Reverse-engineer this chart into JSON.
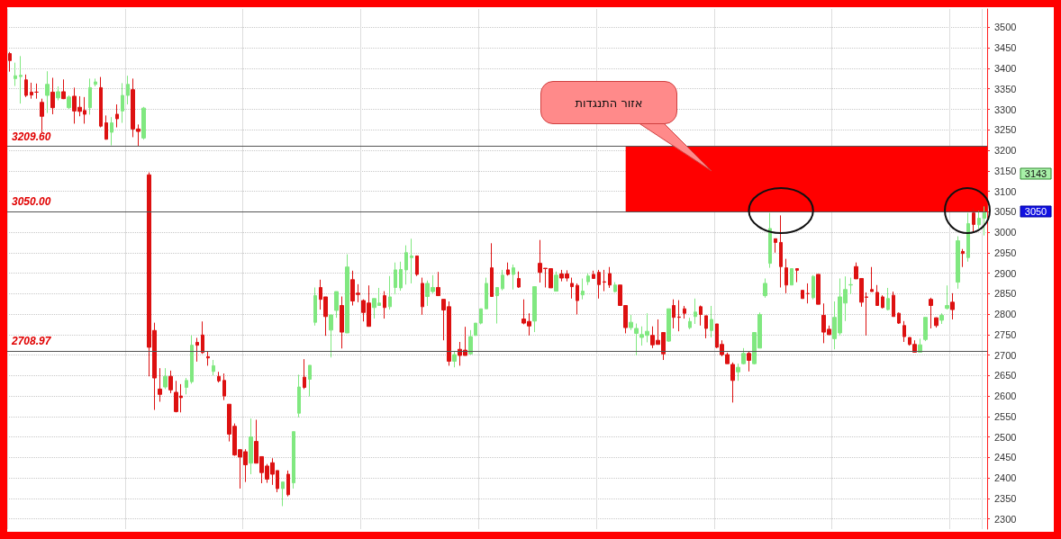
{
  "chart_data": {
    "type": "candlestick",
    "categories": [
      null,
      null,
      null,
      null,
      null,
      null,
      null,
      null,
      null,
      null,
      null,
      null,
      null,
      null,
      null,
      null,
      null,
      null,
      null,
      null,
      null,
      null,
      null,
      null,
      null,
      null,
      null,
      null,
      null,
      null,
      null,
      null,
      null,
      null,
      null,
      null,
      null,
      null,
      null,
      null,
      null,
      null,
      null,
      null,
      null,
      null,
      null,
      null,
      null,
      null,
      null,
      null,
      null,
      null,
      null,
      null,
      null,
      null,
      null,
      null,
      null,
      null,
      null,
      null,
      null,
      null,
      null,
      null,
      null,
      null,
      null,
      null,
      null,
      null,
      null,
      null,
      null,
      null,
      null,
      null,
      null,
      null,
      null,
      null,
      null,
      null,
      null,
      null,
      null,
      null,
      null,
      null,
      null,
      null,
      null,
      null,
      null,
      null,
      null,
      null,
      null,
      null,
      null,
      null,
      null,
      null,
      null,
      null,
      null,
      null,
      null,
      null,
      null,
      null,
      null,
      null,
      null,
      null,
      null,
      null,
      null,
      null,
      null,
      null,
      null,
      null,
      null,
      null,
      null,
      null,
      null,
      null,
      null,
      null,
      null,
      null,
      null,
      null,
      null,
      null,
      null,
      null,
      null,
      null,
      null,
      null,
      null,
      null,
      null,
      null,
      null,
      null,
      null,
      null,
      null,
      null,
      null,
      null,
      null,
      null,
      null,
      null,
      null,
      null,
      null,
      null,
      null,
      null,
      null,
      null,
      null,
      null,
      null,
      null,
      null,
      null,
      null,
      null,
      null,
      null,
      null,
      null,
      null
    ],
    "ohlc": [
      [
        3436,
        3440,
        3392,
        3419
      ],
      [
        3375,
        3414,
        3357,
        3382
      ],
      [
        3380,
        3430,
        3314,
        3383
      ],
      [
        3372,
        3385,
        3330,
        3334
      ],
      [
        3342,
        3365,
        3326,
        3335
      ],
      [
        3342,
        3363,
        3326,
        3342
      ],
      [
        3317,
        3326,
        3244,
        3283
      ],
      [
        3334,
        3393,
        3291,
        3361
      ],
      [
        3342,
        3377,
        3288,
        3304
      ],
      [
        3328,
        3356,
        3322,
        3343
      ],
      [
        3343,
        3373,
        3325,
        3326
      ],
      [
        3304,
        3334,
        3301,
        3330
      ],
      [
        3332,
        3353,
        3265,
        3296
      ],
      [
        3305,
        3332,
        3283,
        3295
      ],
      [
        3297,
        3330,
        3265,
        3288
      ],
      [
        3304,
        3375,
        3287,
        3353
      ],
      [
        3361,
        3375,
        3356,
        3367
      ],
      [
        3353,
        3379,
        3256,
        3259
      ],
      [
        3267,
        3285,
        3226,
        3227
      ],
      [
        3244,
        3281,
        3212,
        3267
      ],
      [
        3288,
        3312,
        3256,
        3277
      ],
      [
        3296,
        3364,
        3267,
        3334
      ],
      [
        3334,
        3382,
        3312,
        3361
      ],
      [
        3348,
        3375,
        3232,
        3252
      ],
      [
        3252,
        3263,
        3210,
        3246
      ],
      [
        3230,
        3306,
        3226,
        3303
      ],
      [
        3140,
        3146,
        2648,
        2719
      ],
      [
        2760,
        2779,
        2566,
        2644
      ],
      [
        2617,
        2668,
        2586,
        2604
      ],
      [
        2622,
        2668,
        2617,
        2648
      ],
      [
        2648,
        2662,
        2607,
        2615
      ],
      [
        2609,
        2637,
        2560,
        2562
      ],
      [
        2600,
        2629,
        2560,
        2596
      ],
      [
        2621,
        2644,
        2604,
        2638
      ],
      [
        2635,
        2748,
        2630,
        2724
      ],
      [
        2731,
        2742,
        2684,
        2724
      ],
      [
        2749,
        2782,
        2703,
        2706
      ],
      [
        2696,
        2709,
        2674,
        2693
      ],
      [
        2660,
        2688,
        2650,
        2674
      ],
      [
        2648,
        2659,
        2633,
        2637
      ],
      [
        2638,
        2655,
        2590,
        2600
      ],
      [
        2580,
        2580,
        2489,
        2507
      ],
      [
        2526,
        2533,
        2454,
        2456
      ],
      [
        2469,
        2469,
        2374,
        2451
      ],
      [
        2464,
        2470,
        2390,
        2432
      ],
      [
        2436,
        2545,
        2409,
        2500
      ],
      [
        2489,
        2542,
        2436,
        2436
      ],
      [
        2452,
        2452,
        2387,
        2413
      ],
      [
        2429,
        2434,
        2388,
        2397
      ],
      [
        2437,
        2448,
        2383,
        2409
      ],
      [
        2418,
        2418,
        2365,
        2374
      ],
      [
        2374,
        2390,
        2331,
        2390
      ],
      [
        2409,
        2418,
        2355,
        2359
      ],
      [
        2388,
        2513,
        2374,
        2513
      ],
      [
        2558,
        2652,
        2548,
        2622
      ],
      [
        2646,
        2690,
        2617,
        2621
      ],
      [
        2641,
        2675,
        2599,
        2675
      ],
      [
        2780,
        2865,
        2772,
        2845
      ],
      [
        2865,
        2884,
        2811,
        2836
      ],
      [
        2842,
        2842,
        2747,
        2794
      ],
      [
        2761,
        2798,
        2694,
        2798
      ],
      [
        2809,
        2855,
        2791,
        2855
      ],
      [
        2821,
        2843,
        2716,
        2756
      ],
      [
        2754,
        2946,
        2754,
        2915
      ],
      [
        2884,
        2906,
        2821,
        2832
      ],
      [
        2851,
        2873,
        2829,
        2848
      ],
      [
        2833,
        2836,
        2782,
        2804
      ],
      [
        2827,
        2870,
        2770,
        2770
      ],
      [
        2816,
        2838,
        2789,
        2838
      ],
      [
        2821,
        2864,
        2820,
        2827
      ],
      [
        2845,
        2856,
        2789,
        2816
      ],
      [
        2818,
        2893,
        2811,
        2842
      ],
      [
        2865,
        2926,
        2848,
        2908
      ],
      [
        2864,
        2928,
        2857,
        2909
      ],
      [
        2908,
        2968,
        2872,
        2950
      ],
      [
        2938,
        2984,
        2875,
        2942
      ],
      [
        2942,
        2942,
        2893,
        2897
      ],
      [
        2875,
        2889,
        2798,
        2818
      ],
      [
        2843,
        2882,
        2820,
        2875
      ],
      [
        2855,
        2895,
        2851,
        2865
      ],
      [
        2865,
        2903,
        2845,
        2845
      ],
      [
        2836,
        2836,
        2736,
        2810
      ],
      [
        2818,
        2831,
        2674,
        2685
      ],
      [
        2685,
        2710,
        2670,
        2701
      ],
      [
        2714,
        2732,
        2674,
        2699
      ],
      [
        2712,
        2769,
        2699,
        2699
      ],
      [
        2703,
        2761,
        2701,
        2745
      ],
      [
        2748,
        2778,
        2747,
        2778
      ],
      [
        2778,
        2813,
        2775,
        2813
      ],
      [
        2813,
        2889,
        2813,
        2875
      ],
      [
        2913,
        2973,
        2843,
        2843
      ],
      [
        2845,
        2865,
        2777,
        2865
      ],
      [
        2862,
        2908,
        2858,
        2895
      ],
      [
        2908,
        2926,
        2894,
        2897
      ],
      [
        2897,
        2921,
        2860,
        2913
      ],
      [
        2887,
        2904,
        2864,
        2866
      ],
      [
        2788,
        2836,
        2775,
        2778
      ],
      [
        2782,
        2802,
        2748,
        2771
      ],
      [
        2783,
        2867,
        2756,
        2867
      ],
      [
        2924,
        2981,
        2877,
        2902
      ],
      [
        2912,
        2912,
        2865,
        2911
      ],
      [
        2911,
        2911,
        2864,
        2864
      ],
      [
        2856,
        2904,
        2856,
        2895
      ],
      [
        2898,
        2908,
        2880,
        2888
      ],
      [
        2898,
        2907,
        2880,
        2888
      ],
      [
        2875,
        2889,
        2838,
        2867
      ],
      [
        2870,
        2875,
        2799,
        2833
      ],
      [
        2847,
        2887,
        2836,
        2856
      ],
      [
        2879,
        2899,
        2871,
        2893
      ],
      [
        2897,
        2906,
        2886,
        2887
      ],
      [
        2902,
        2908,
        2838,
        2872
      ],
      [
        2879,
        2908,
        2856,
        2878
      ],
      [
        2899,
        2915,
        2864,
        2871
      ],
      [
        2855,
        2878,
        2853,
        2871
      ],
      [
        2871,
        2871,
        2821,
        2821
      ],
      [
        2821,
        2821,
        2753,
        2767
      ],
      [
        2767,
        2798,
        2761,
        2780
      ],
      [
        2753,
        2777,
        2699,
        2765
      ],
      [
        2743,
        2770,
        2723,
        2750
      ],
      [
        2748,
        2802,
        2731,
        2758
      ],
      [
        2748,
        2770,
        2717,
        2725
      ],
      [
        2736,
        2787,
        2726,
        2726
      ],
      [
        2755,
        2755,
        2688,
        2703
      ],
      [
        2734,
        2813,
        2732,
        2813
      ],
      [
        2821,
        2836,
        2765,
        2792
      ],
      [
        2793,
        2834,
        2758,
        2792
      ],
      [
        2813,
        2820,
        2789,
        2802
      ],
      [
        2767,
        2791,
        2763,
        2782
      ],
      [
        2794,
        2838,
        2776,
        2805
      ],
      [
        2818,
        2821,
        2772,
        2799
      ],
      [
        2796,
        2796,
        2741,
        2765
      ],
      [
        2760,
        2820,
        2743,
        2787
      ],
      [
        2776,
        2776,
        2717,
        2719
      ],
      [
        2726,
        2736,
        2697,
        2701
      ],
      [
        2701,
        2706,
        2679,
        2679
      ],
      [
        2677,
        2682,
        2584,
        2638
      ],
      [
        2659,
        2679,
        2637,
        2670
      ],
      [
        2679,
        2717,
        2677,
        2704
      ],
      [
        2704,
        2709,
        2660,
        2687
      ],
      [
        2679,
        2755,
        2677,
        2755
      ],
      [
        2717,
        2804,
        2717,
        2799
      ],
      [
        2845,
        2887,
        2840,
        2875
      ],
      [
        2924,
        3047,
        2913,
        3009
      ],
      [
        2984,
        2984,
        2950,
        2975
      ],
      [
        2975,
        3041,
        2865,
        2916
      ],
      [
        2913,
        2935,
        2851,
        2871
      ],
      [
        2871,
        2911,
        2871,
        2911
      ],
      [
        2911,
        2911,
        2878,
        2907
      ],
      [
        2858,
        2858,
        2838,
        2838
      ],
      [
        2850,
        2875,
        2826,
        2850
      ],
      [
        2840,
        2895,
        2836,
        2892
      ],
      [
        2897,
        2897,
        2824,
        2824
      ],
      [
        2797,
        2826,
        2729,
        2756
      ],
      [
        2763,
        2772,
        2748,
        2750
      ],
      [
        2740,
        2831,
        2714,
        2792
      ],
      [
        2754,
        2887,
        2747,
        2842
      ],
      [
        2827,
        2892,
        2783,
        2860
      ],
      [
        2871,
        2889,
        2849,
        2872
      ],
      [
        2916,
        2926,
        2886,
        2886
      ],
      [
        2887,
        2887,
        2818,
        2829
      ],
      [
        2842,
        2853,
        2748,
        2841
      ],
      [
        2860,
        2915,
        2855,
        2855
      ],
      [
        2853,
        2871,
        2820,
        2821
      ],
      [
        2842,
        2846,
        2814,
        2816
      ],
      [
        2811,
        2864,
        2809,
        2838
      ],
      [
        2846,
        2855,
        2794,
        2794
      ],
      [
        2802,
        2804,
        2776,
        2778
      ],
      [
        2772,
        2783,
        2732,
        2745
      ],
      [
        2743,
        2743,
        2723,
        2726
      ],
      [
        2726,
        2736,
        2707,
        2707
      ],
      [
        2707,
        2740,
        2707,
        2725
      ],
      [
        2738,
        2792,
        2734,
        2792
      ],
      [
        2836,
        2840,
        2765,
        2821
      ],
      [
        2791,
        2792,
        2767,
        2772
      ],
      [
        2785,
        2802,
        2776,
        2797
      ],
      [
        2814,
        2870,
        2811,
        2821
      ],
      [
        2829,
        2851,
        2787,
        2811
      ],
      [
        2878,
        2990,
        2862,
        2979
      ],
      [
        2953,
        2959,
        2915,
        2948
      ],
      [
        2938,
        3047,
        2928,
        3021
      ],
      [
        3047,
        3058,
        2999,
        3019
      ],
      [
        3018,
        3052,
        3009,
        3034
      ],
      [
        3034,
        3063,
        2992,
        3048
      ]
    ],
    "colors": [
      "#dd1111",
      "#80e880",
      "#80e880",
      "#dd1111",
      "#dd1111",
      "#dd1111",
      "#dd1111",
      "#80e880",
      "#dd1111",
      "#80e880",
      "#dd1111",
      "#80e880",
      "#dd1111",
      "#dd1111",
      "#dd1111",
      "#80e880",
      "#80e880",
      "#dd1111",
      "#dd1111",
      "#80e880",
      "#dd1111",
      "#80e880",
      "#80e880",
      "#dd1111",
      "#dd1111",
      "#80e880",
      "#dd1111",
      "#dd1111",
      "#dd1111",
      "#80e880",
      "#dd1111",
      "#dd1111",
      "#dd1111",
      "#80e880",
      "#80e880",
      "#dd1111",
      "#dd1111",
      "#dd1111",
      "#80e880",
      "#dd1111",
      "#dd1111",
      "#dd1111",
      "#dd1111",
      "#dd1111",
      "#dd1111",
      "#80e880",
      "#dd1111",
      "#dd1111",
      "#dd1111",
      "#dd1111",
      "#dd1111",
      "#80e880",
      "#dd1111",
      "#80e880",
      "#80e880",
      "#dd1111",
      "#80e880",
      "#80e880",
      "#dd1111",
      "#dd1111",
      "#80e880",
      "#80e880",
      "#dd1111",
      "#80e880",
      "#dd1111",
      "#dd1111",
      "#dd1111",
      "#dd1111",
      "#80e880",
      "#80e880",
      "#dd1111",
      "#80e880",
      "#80e880",
      "#80e880",
      "#80e880",
      "#80e880",
      "#dd1111",
      "#dd1111",
      "#80e880",
      "#80e880",
      "#dd1111",
      "#dd1111",
      "#dd1111",
      "#80e880",
      "#dd1111",
      "#dd1111",
      "#80e880",
      "#80e880",
      "#80e880",
      "#80e880",
      "#dd1111",
      "#80e880",
      "#80e880",
      "#dd1111",
      "#80e880",
      "#dd1111",
      "#dd1111",
      "#dd1111",
      "#80e880",
      "#dd1111",
      "#dd1111",
      "#dd1111",
      "#80e880",
      "#dd1111",
      "#dd1111",
      "#dd1111",
      "#dd1111",
      "#80e880",
      "#80e880",
      "#dd1111",
      "#dd1111",
      "#dd1111",
      "#dd1111",
      "#80e880",
      "#dd1111",
      "#dd1111",
      "#80e880",
      "#80e880",
      "#80e880",
      "#80e880",
      "#dd1111",
      "#dd1111",
      "#dd1111",
      "#80e880",
      "#dd1111",
      "#dd1111",
      "#dd1111",
      "#80e880",
      "#80e880",
      "#dd1111",
      "#dd1111",
      "#80e880",
      "#dd1111",
      "#dd1111",
      "#dd1111",
      "#dd1111",
      "#80e880",
      "#80e880",
      "#dd1111",
      "#80e880",
      "#80e880",
      "#80e880",
      "#80e880",
      "#dd1111",
      "#dd1111",
      "#dd1111",
      "#80e880",
      "#dd1111",
      "#dd1111",
      "#dd1111",
      "#80e880",
      "#dd1111",
      "#dd1111",
      "#dd1111",
      "#80e880",
      "#80e880",
      "#80e880",
      "#80e880",
      "#dd1111",
      "#dd1111",
      "#dd1111",
      "#dd1111",
      "#dd1111",
      "#dd1111",
      "#80e880",
      "#dd1111",
      "#dd1111",
      "#dd1111",
      "#dd1111",
      "#dd1111",
      "#80e880",
      "#80e880",
      "#dd1111",
      "#dd1111",
      "#80e880",
      "#80e880",
      "#dd1111",
      "#80e880",
      "#dd1111",
      "#80e880",
      "#dd1111",
      "#80e880",
      "#80e880"
    ],
    "ylim": [
      2275,
      3545
    ],
    "yticks": [
      2300,
      2350,
      2400,
      2450,
      2500,
      2550,
      2600,
      2650,
      2700,
      2750,
      2800,
      2850,
      2900,
      2950,
      3000,
      3050,
      3100,
      3150,
      3200,
      3250,
      3300,
      3350,
      3400,
      3450,
      3500
    ],
    "tick_labels": "y",
    "grid": true,
    "ref_lines": [
      {
        "axis": "y",
        "value": 3209.6,
        "label": "3209.60",
        "color": "#555555"
      },
      {
        "axis": "y",
        "value": 3050,
        "label": "3050.00",
        "color": "#555555"
      },
      {
        "axis": "y",
        "value": 2708.97,
        "label": "2708.97",
        "color": "#555555"
      }
    ],
    "bands": [
      {
        "axis": "y",
        "from": 3050,
        "to": 3209.6,
        "color": "#ff0000"
      }
    ],
    "annotations": [
      "אזור התנגדות",
      "3143",
      "3050"
    ]
  }
}
